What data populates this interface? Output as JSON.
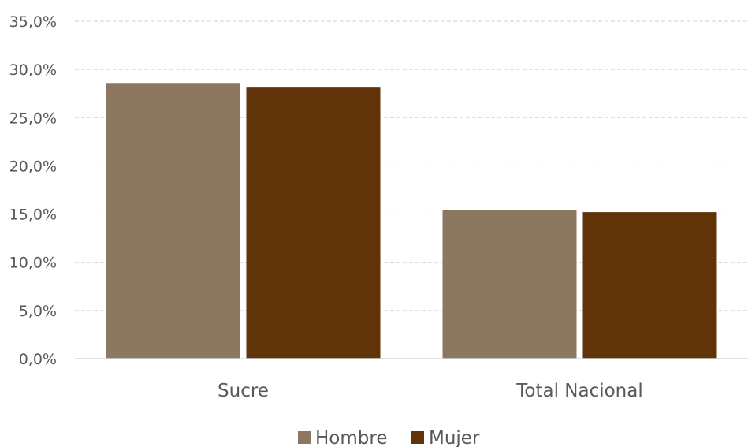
{
  "chart_data": {
    "type": "bar",
    "categories": [
      "Sucre",
      "Total Nacional"
    ],
    "series": [
      {
        "name": "Hombre",
        "values": [
          28.6,
          15.4
        ],
        "color": "#8c7761"
      },
      {
        "name": "Mujer",
        "values": [
          28.2,
          15.2
        ],
        "color": "#603308"
      }
    ],
    "ylim": [
      0,
      35
    ],
    "yticks": [
      0,
      5,
      10,
      15,
      20,
      25,
      30,
      35
    ],
    "ytick_labels": [
      "0,0%",
      "5,0%",
      "10,0%",
      "15,0%",
      "20,0%",
      "25,0%",
      "30,0%",
      "35,0%"
    ],
    "grid": true,
    "legend_position": "bottom",
    "colors": {
      "grid": "#d9d9d9",
      "axis": "#d9d9d9",
      "text": "#595959"
    }
  }
}
